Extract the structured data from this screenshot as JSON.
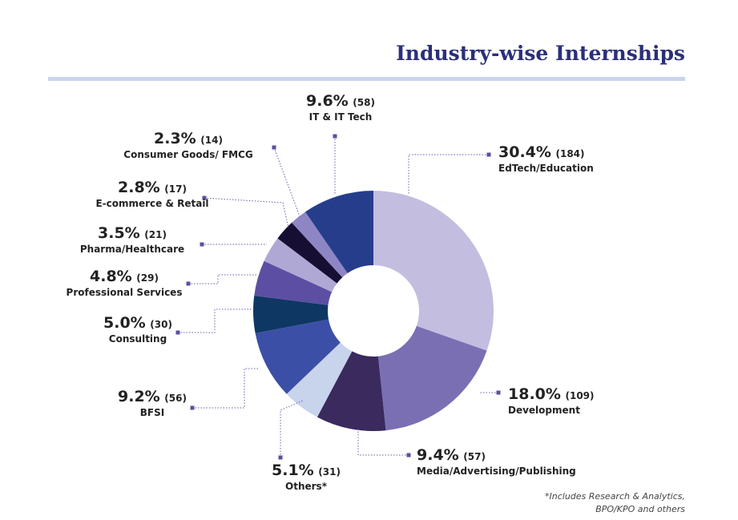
{
  "chart_data": {
    "type": "donut",
    "title": "Industry-wise Internships",
    "categories": [
      "EdTech/Education",
      "Development",
      "Media/Advertising/Publishing",
      "Others*",
      "BFSI",
      "Consulting",
      "Professional Services",
      "Pharma/Healthcare",
      "E-commerce & Retail",
      "Consumer Goods/ FMCG",
      "IT & IT Tech"
    ],
    "values": [
      30.4,
      18.0,
      9.4,
      5.1,
      9.2,
      5.0,
      4.8,
      3.5,
      2.8,
      2.3,
      9.6
    ],
    "value_labels": [
      "30.4%",
      "18.0%",
      "9.4%",
      "5.1%",
      "9.2%",
      "5.0%",
      "4.8%",
      "3.5%",
      "2.8%",
      "2.3%",
      "9.6%"
    ],
    "counts": [
      184,
      109,
      57,
      31,
      56,
      30,
      29,
      21,
      17,
      14,
      58
    ],
    "count_labels": [
      "(184)",
      "(109)",
      "(57)",
      "(31)",
      "(56)",
      "(30)",
      "(29)",
      "(21)",
      "(17)",
      "(14)",
      "(58)"
    ],
    "colors": [
      "#c3bde0",
      "#7b6fb3",
      "#3a2a5e",
      "#c8d3ec",
      "#3b4fa6",
      "#0e3763",
      "#5c4fa3",
      "#b0a8d4",
      "#160f33",
      "#8e85c4",
      "#263d8c"
    ],
    "footnote": "*Includes Research & Analytics, BPO/KPO and others"
  }
}
